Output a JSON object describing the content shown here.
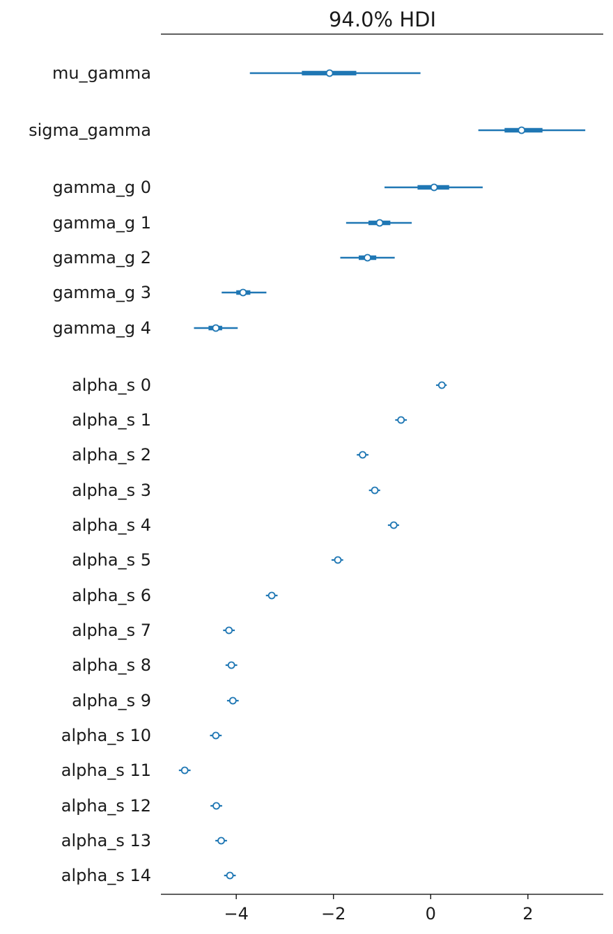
{
  "chart_data": {
    "type": "forest",
    "title": "94.0% HDI",
    "xlabel": "",
    "ylabel": "",
    "xlim": [
      -5.55,
      3.55
    ],
    "xticks": [
      -4,
      -2,
      0,
      2
    ],
    "xtick_labels": [
      "−4",
      "−2",
      "0",
      "2"
    ],
    "grid": false,
    "color": "#1f77b4",
    "rows": [
      {
        "label": "mu_gamma",
        "mean": -2.08,
        "hdi_low": -3.72,
        "hdi_high": -0.21,
        "iqr_low": -2.65,
        "iqr_high": -1.53
      },
      {
        "label": "sigma_gamma",
        "mean": 1.87,
        "hdi_low": 0.98,
        "hdi_high": 3.18,
        "iqr_low": 1.52,
        "iqr_high": 2.3
      },
      {
        "label": "gamma_g 0",
        "mean": 0.07,
        "hdi_low": -0.95,
        "hdi_high": 1.07,
        "iqr_low": -0.27,
        "iqr_high": 0.38
      },
      {
        "label": "gamma_g 1",
        "mean": -1.05,
        "hdi_low": -1.74,
        "hdi_high": -0.39,
        "iqr_low": -1.28,
        "iqr_high": -0.83
      },
      {
        "label": "gamma_g 2",
        "mean": -1.3,
        "hdi_low": -1.86,
        "hdi_high": -0.74,
        "iqr_low": -1.48,
        "iqr_high": -1.12
      },
      {
        "label": "gamma_g 3",
        "mean": -3.86,
        "hdi_low": -4.3,
        "hdi_high": -3.38,
        "iqr_low": -4.0,
        "iqr_high": -3.71
      },
      {
        "label": "gamma_g 4",
        "mean": -4.42,
        "hdi_low": -4.87,
        "hdi_high": -3.97,
        "iqr_low": -4.57,
        "iqr_high": -4.29
      },
      {
        "label": "alpha_s 0",
        "mean": 0.23,
        "hdi_low": 0.11,
        "hdi_high": 0.33,
        "iqr_low": 0.19,
        "iqr_high": 0.27
      },
      {
        "label": "alpha_s 1",
        "mean": -0.61,
        "hdi_low": -0.73,
        "hdi_high": -0.49,
        "iqr_low": -0.65,
        "iqr_high": -0.57
      },
      {
        "label": "alpha_s 2",
        "mean": -1.4,
        "hdi_low": -1.52,
        "hdi_high": -1.28,
        "iqr_low": -1.44,
        "iqr_high": -1.36
      },
      {
        "label": "alpha_s 3",
        "mean": -1.15,
        "hdi_low": -1.27,
        "hdi_high": -1.04,
        "iqr_low": -1.19,
        "iqr_high": -1.11
      },
      {
        "label": "alpha_s 4",
        "mean": -0.76,
        "hdi_low": -0.88,
        "hdi_high": -0.65,
        "iqr_low": -0.8,
        "iqr_high": -0.72
      },
      {
        "label": "alpha_s 5",
        "mean": -1.91,
        "hdi_low": -2.04,
        "hdi_high": -1.8,
        "iqr_low": -1.95,
        "iqr_high": -1.87
      },
      {
        "label": "alpha_s 6",
        "mean": -3.27,
        "hdi_low": -3.39,
        "hdi_high": -3.15,
        "iqr_low": -3.31,
        "iqr_high": -3.23
      },
      {
        "label": "alpha_s 7",
        "mean": -4.15,
        "hdi_low": -4.27,
        "hdi_high": -4.03,
        "iqr_low": -4.19,
        "iqr_high": -4.11
      },
      {
        "label": "alpha_s 8",
        "mean": -4.1,
        "hdi_low": -4.22,
        "hdi_high": -3.98,
        "iqr_low": -4.14,
        "iqr_high": -4.06
      },
      {
        "label": "alpha_s 9",
        "mean": -4.07,
        "hdi_low": -4.19,
        "hdi_high": -3.95,
        "iqr_low": -4.11,
        "iqr_high": -4.03
      },
      {
        "label": "alpha_s 10",
        "mean": -4.42,
        "hdi_low": -4.54,
        "hdi_high": -4.3,
        "iqr_low": -4.46,
        "iqr_high": -4.38
      },
      {
        "label": "alpha_s 11",
        "mean": -5.06,
        "hdi_low": -5.18,
        "hdi_high": -4.94,
        "iqr_low": -5.1,
        "iqr_high": -5.02
      },
      {
        "label": "alpha_s 12",
        "mean": -4.41,
        "hdi_low": -4.53,
        "hdi_high": -4.29,
        "iqr_low": -4.45,
        "iqr_high": -4.37
      },
      {
        "label": "alpha_s 13",
        "mean": -4.31,
        "hdi_low": -4.43,
        "hdi_high": -4.19,
        "iqr_low": -4.35,
        "iqr_high": -4.27
      },
      {
        "label": "alpha_s 14",
        "mean": -4.13,
        "hdi_low": -4.25,
        "hdi_high": -4.01,
        "iqr_low": -4.17,
        "iqr_high": -4.09
      }
    ]
  }
}
